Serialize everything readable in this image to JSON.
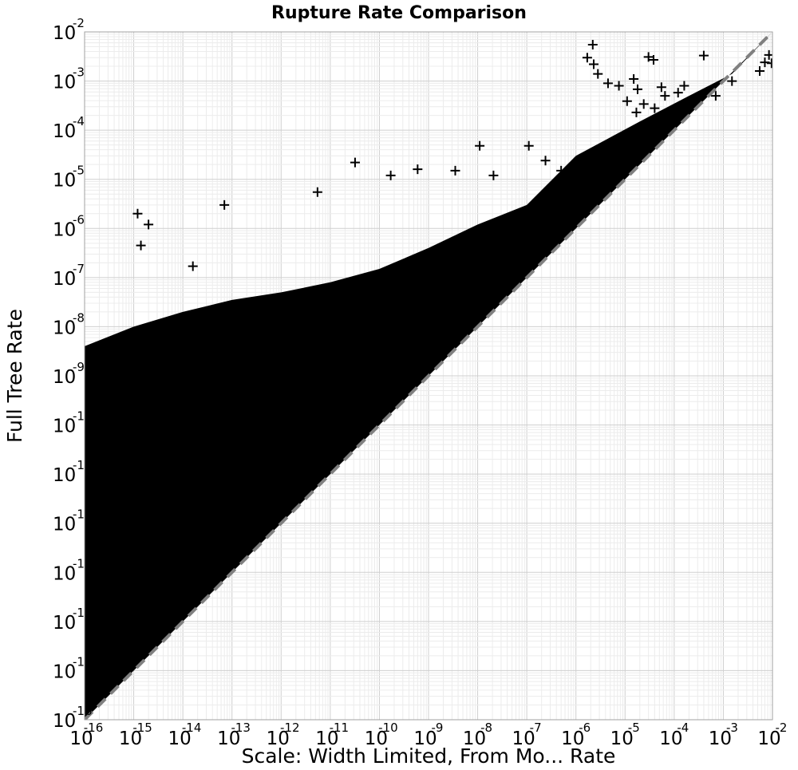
{
  "chart_data": {
    "type": "scatter",
    "title": "Rupture Rate Comparison",
    "xlabel": "Scale: Width Limited, From Mo... Rate",
    "ylabel": "Full Tree Rate",
    "x_scale": "log",
    "y_scale": "log",
    "xlim": [
      1e-16,
      0.01
    ],
    "ylim": [
      1e-16,
      0.01
    ],
    "grid": true,
    "marker": "+",
    "x_ticks": [
      {
        "base": "10",
        "exp": "-16"
      },
      {
        "base": "10",
        "exp": "-15"
      },
      {
        "base": "10",
        "exp": "-14"
      },
      {
        "base": "10",
        "exp": "-13"
      },
      {
        "base": "10",
        "exp": "-12"
      },
      {
        "base": "10",
        "exp": "-11"
      },
      {
        "base": "10",
        "exp": "-10"
      },
      {
        "base": "10",
        "exp": "-9"
      },
      {
        "base": "10",
        "exp": "-8"
      },
      {
        "base": "10",
        "exp": "-7"
      },
      {
        "base": "10",
        "exp": "-6"
      },
      {
        "base": "10",
        "exp": "-5"
      },
      {
        "base": "10",
        "exp": "-4"
      },
      {
        "base": "10",
        "exp": "-3"
      },
      {
        "base": "10",
        "exp": "-2"
      }
    ],
    "y_ticks": [
      {
        "base": "10",
        "exp": "-16"
      },
      {
        "base": "10",
        "exp": "-15"
      },
      {
        "base": "10",
        "exp": "-14"
      },
      {
        "base": "10",
        "exp": "-13"
      },
      {
        "base": "10",
        "exp": "-12"
      },
      {
        "base": "10",
        "exp": "-11"
      },
      {
        "base": "10",
        "exp": "-10"
      },
      {
        "base": "10",
        "exp": "-9"
      },
      {
        "base": "10",
        "exp": "-8"
      },
      {
        "base": "10",
        "exp": "-7"
      },
      {
        "base": "10",
        "exp": "-6"
      },
      {
        "base": "10",
        "exp": "-5"
      },
      {
        "base": "10",
        "exp": "-4"
      },
      {
        "base": "10",
        "exp": "-3"
      },
      {
        "base": "10",
        "exp": "-2"
      }
    ],
    "series": [
      {
        "color": "#000000",
        "points": [
          [
            0.0055,
            0.0016
          ],
          [
            0.007,
            0.0024
          ],
          [
            0.0085,
            0.0034
          ],
          [
            0.0096,
            0.0023
          ],
          [
            0.00016,
            0.0008
          ],
          [
            0.00012,
            0.00058
          ],
          [
            0.0004,
            0.0033
          ],
          [
            0.0007,
            0.0005
          ],
          [
            0.0015,
            0.001
          ],
          [
            2.2e-06,
            0.0055
          ],
          [
            1.7e-06,
            0.003
          ],
          [
            3e-05,
            0.0031
          ],
          [
            3.8e-05,
            0.0027
          ],
          [
            2.3e-06,
            0.0022
          ],
          [
            2.8e-06,
            0.0014
          ],
          [
            4.5e-06,
            0.0009
          ],
          [
            7.5e-06,
            0.0008
          ],
          [
            1.5e-05,
            0.0011
          ],
          [
            1.8e-05,
            0.00068
          ],
          [
            1.1e-05,
            0.00039
          ],
          [
            2.4e-05,
            0.00034
          ],
          [
            6.5e-05,
            0.0005
          ],
          [
            5.5e-05,
            0.00075
          ],
          [
            4e-05,
            0.00028
          ],
          [
            1.7e-05,
            0.00023
          ],
          [
            7e-14,
            3e-06
          ],
          [
            3.2e-11,
            2.2e-05
          ],
          [
            1.1e-08,
            4.8e-05
          ],
          [
            1.1e-07,
            4.8e-05
          ],
          [
            1.2e-15,
            2e-06
          ],
          [
            2e-15,
            1.2e-06
          ],
          [
            1.6e-14,
            1.7e-07
          ],
          [
            5.5e-12,
            5.5e-06
          ],
          [
            1.7e-10,
            1.2e-05
          ],
          [
            6e-10,
            1.6e-05
          ],
          [
            3.5e-09,
            1.5e-05
          ],
          [
            2.1e-08,
            1.2e-05
          ],
          [
            2.4e-07,
            2.4e-05
          ],
          [
            5e-07,
            1.5e-05
          ],
          [
            2.5e-06,
            3e-05
          ],
          [
            1.4e-15,
            4.5e-07
          ]
        ]
      }
    ],
    "reference_line": {
      "x": [
        1e-16,
        0.01
      ],
      "y": [
        1e-16,
        0.01
      ],
      "style": "dashed",
      "color": "#808080"
    }
  }
}
